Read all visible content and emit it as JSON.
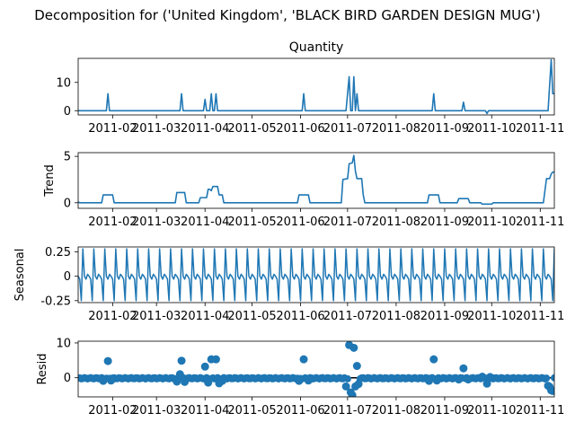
{
  "figure": {
    "suptitle": "Decomposition for ('United Kingdom', 'BLACK BIRD GARDEN DESIGN MUG')"
  },
  "chart_data": [
    {
      "type": "line",
      "panel": "observed",
      "title": "Quantity",
      "ylabel": "",
      "xlabel": "",
      "x_range": [
        "2011-01-10",
        "2011-11-10"
      ],
      "xticks": [
        "2011-02",
        "2011-03",
        "2011-04",
        "2011-05",
        "2011-06",
        "2011-07",
        "2011-08",
        "2011-09",
        "2011-10",
        "2011-11"
      ],
      "ylim": [
        -1.5,
        18.5
      ],
      "yticks": [
        0,
        10
      ],
      "color": "#1f77b4",
      "series": [
        {
          "values": [
            [
              "2011-01-10",
              0
            ],
            [
              "2011-01-28",
              0
            ],
            [
              "2011-01-29",
              6
            ],
            [
              "2011-01-30",
              0
            ],
            [
              "2011-03-16",
              0
            ],
            [
              "2011-03-17",
              6
            ],
            [
              "2011-03-18",
              0
            ],
            [
              "2011-03-31",
              0
            ],
            [
              "2011-04-01",
              4
            ],
            [
              "2011-04-02",
              0
            ],
            [
              "2011-04-04",
              0
            ],
            [
              "2011-04-05",
              6
            ],
            [
              "2011-04-06",
              0
            ],
            [
              "2011-04-07",
              0
            ],
            [
              "2011-04-08",
              6
            ],
            [
              "2011-04-09",
              0
            ],
            [
              "2011-06-02",
              0
            ],
            [
              "2011-06-03",
              6
            ],
            [
              "2011-06-04",
              0
            ],
            [
              "2011-06-30",
              0
            ],
            [
              "2011-07-02",
              12
            ],
            [
              "2011-07-03",
              0
            ],
            [
              "2011-07-04",
              0
            ],
            [
              "2011-07-05",
              12
            ],
            [
              "2011-07-06",
              0
            ],
            [
              "2011-07-07",
              6
            ],
            [
              "2011-07-08",
              0
            ],
            [
              "2011-08-24",
              0
            ],
            [
              "2011-08-25",
              6
            ],
            [
              "2011-08-26",
              0
            ],
            [
              "2011-09-12",
              0
            ],
            [
              "2011-09-13",
              3
            ],
            [
              "2011-09-14",
              0
            ],
            [
              "2011-09-27",
              0
            ],
            [
              "2011-09-28",
              -1
            ],
            [
              "2011-09-29",
              0
            ],
            [
              "2011-11-06",
              0
            ],
            [
              "2011-11-08",
              18
            ],
            [
              "2011-11-09",
              6
            ],
            [
              "2011-11-10",
              6
            ]
          ]
        }
      ]
    },
    {
      "type": "line",
      "panel": "trend",
      "title": "",
      "ylabel": "Trend",
      "xlabel": "",
      "x_range": [
        "2011-01-10",
        "2011-11-10"
      ],
      "xticks": [
        "2011-02",
        "2011-03",
        "2011-04",
        "2011-05",
        "2011-06",
        "2011-07",
        "2011-08",
        "2011-09",
        "2011-10",
        "2011-11"
      ],
      "ylim": [
        -0.6,
        5.4
      ],
      "yticks": [
        0,
        5
      ],
      "color": "#1f77b4",
      "series": [
        {
          "values": [
            [
              "2011-01-10",
              0.1
            ],
            [
              "2011-01-11",
              0
            ],
            [
              "2011-01-25",
              0
            ],
            [
              "2011-01-26",
              0.85
            ],
            [
              "2011-02-01",
              0.85
            ],
            [
              "2011-02-02",
              0
            ],
            [
              "2011-03-13",
              0
            ],
            [
              "2011-03-14",
              1.1
            ],
            [
              "2011-03-19",
              1.1
            ],
            [
              "2011-03-20",
              0
            ],
            [
              "2011-03-28",
              0
            ],
            [
              "2011-03-29",
              0.55
            ],
            [
              "2011-04-02",
              0.55
            ],
            [
              "2011-04-03",
              1.45
            ],
            [
              "2011-04-04",
              1.45
            ],
            [
              "2011-04-05",
              1.3
            ],
            [
              "2011-04-06",
              1.75
            ],
            [
              "2011-04-09",
              1.75
            ],
            [
              "2011-04-10",
              0.85
            ],
            [
              "2011-04-12",
              0.85
            ],
            [
              "2011-04-13",
              0
            ],
            [
              "2011-05-30",
              0
            ],
            [
              "2011-05-31",
              0.85
            ],
            [
              "2011-06-06",
              0.85
            ],
            [
              "2011-06-07",
              0
            ],
            [
              "2011-06-27",
              0
            ],
            [
              "2011-06-28",
              2.5
            ],
            [
              "2011-07-01",
              2.6
            ],
            [
              "2011-07-02",
              4.2
            ],
            [
              "2011-07-04",
              4.3
            ],
            [
              "2011-07-05",
              5.1
            ],
            [
              "2011-07-06",
              3.4
            ],
            [
              "2011-07-07",
              2.6
            ],
            [
              "2011-07-10",
              2.6
            ],
            [
              "2011-07-11",
              0.85
            ],
            [
              "2011-07-12",
              0
            ],
            [
              "2011-08-21",
              0
            ],
            [
              "2011-08-22",
              0.85
            ],
            [
              "2011-08-28",
              0.85
            ],
            [
              "2011-08-29",
              0
            ],
            [
              "2011-09-09",
              0
            ],
            [
              "2011-09-10",
              0.45
            ],
            [
              "2011-09-16",
              0.45
            ],
            [
              "2011-09-17",
              0
            ],
            [
              "2011-09-24",
              0
            ],
            [
              "2011-09-25",
              -0.15
            ],
            [
              "2011-10-01",
              -0.15
            ],
            [
              "2011-10-02",
              0
            ],
            [
              "2011-11-03",
              0
            ],
            [
              "2011-11-05",
              2.6
            ],
            [
              "2011-11-07",
              2.6
            ],
            [
              "2011-11-08",
              3.1
            ],
            [
              "2011-11-09",
              3.3
            ],
            [
              "2011-11-10",
              3.3
            ]
          ]
        }
      ]
    },
    {
      "type": "line",
      "panel": "seasonal",
      "title": "",
      "ylabel": "Seasonal",
      "xlabel": "",
      "x_range": [
        "2011-01-10",
        "2011-11-10"
      ],
      "xticks": [
        "2011-02",
        "2011-03",
        "2011-04",
        "2011-05",
        "2011-06",
        "2011-07",
        "2011-08",
        "2011-09",
        "2011-10",
        "2011-11"
      ],
      "ylim": [
        -0.27,
        0.3
      ],
      "yticks": [
        0.25,
        0.0,
        -0.25
      ],
      "color": "#1f77b4",
      "period": 7,
      "pattern": [
        0.28,
        0.0,
        -0.03,
        0.02,
        0.0,
        -0.03,
        -0.25
      ]
    },
    {
      "type": "scatter",
      "panel": "resid",
      "title": "",
      "ylabel": "Resid",
      "xlabel": "",
      "x_range": [
        "2011-01-10",
        "2011-11-10"
      ],
      "xticks": [
        "2011-02",
        "2011-03",
        "2011-04",
        "2011-05",
        "2011-06",
        "2011-07",
        "2011-08",
        "2011-09",
        "2011-10",
        "2011-11"
      ],
      "ylim": [
        -5.5,
        10.5
      ],
      "yticks": [
        0,
        10
      ],
      "color": "#1f77b4",
      "baseline": 0,
      "points": [
        [
          "2011-01-29",
          4.8
        ],
        [
          "2011-03-17",
          4.9
        ],
        [
          "2011-03-16",
          1.0
        ],
        [
          "2011-04-01",
          3.2
        ],
        [
          "2011-04-05",
          5.3
        ],
        [
          "2011-04-08",
          5.3
        ],
        [
          "2011-06-03",
          5.3
        ],
        [
          "2011-06-30",
          -2.5
        ],
        [
          "2011-07-02",
          9.4
        ],
        [
          "2011-07-03",
          -4.2
        ],
        [
          "2011-07-04",
          -5.0
        ],
        [
          "2011-07-05",
          8.6
        ],
        [
          "2011-07-06",
          -2.5
        ],
        [
          "2011-07-07",
          3.4
        ],
        [
          "2011-07-08",
          -1.8
        ],
        [
          "2011-08-25",
          5.3
        ],
        [
          "2011-09-13",
          2.7
        ],
        [
          "2011-09-28",
          -1.7
        ],
        [
          "2011-11-06",
          -2.3
        ],
        [
          "2011-11-07",
          -2.6
        ],
        [
          "2011-11-08",
          -3.6
        ],
        [
          "2011-11-09",
          -3.8
        ],
        [
          "2011-01-26",
          -0.9
        ],
        [
          "2011-01-31",
          -0.8
        ],
        [
          "2011-03-14",
          -1.1
        ],
        [
          "2011-03-19",
          -1.2
        ],
        [
          "2011-04-03",
          -1.4
        ],
        [
          "2011-04-10",
          -1.6
        ],
        [
          "2011-04-12",
          -0.9
        ],
        [
          "2011-05-31",
          -0.9
        ],
        [
          "2011-06-06",
          -0.8
        ],
        [
          "2011-08-22",
          -0.9
        ],
        [
          "2011-08-27",
          -0.8
        ],
        [
          "2011-09-10",
          -0.5
        ],
        [
          "2011-09-16",
          -0.5
        ],
        [
          "2011-09-25",
          0.3
        ],
        [
          "2011-09-30",
          0.2
        ]
      ],
      "noise_amplitude": 0.3
    }
  ]
}
